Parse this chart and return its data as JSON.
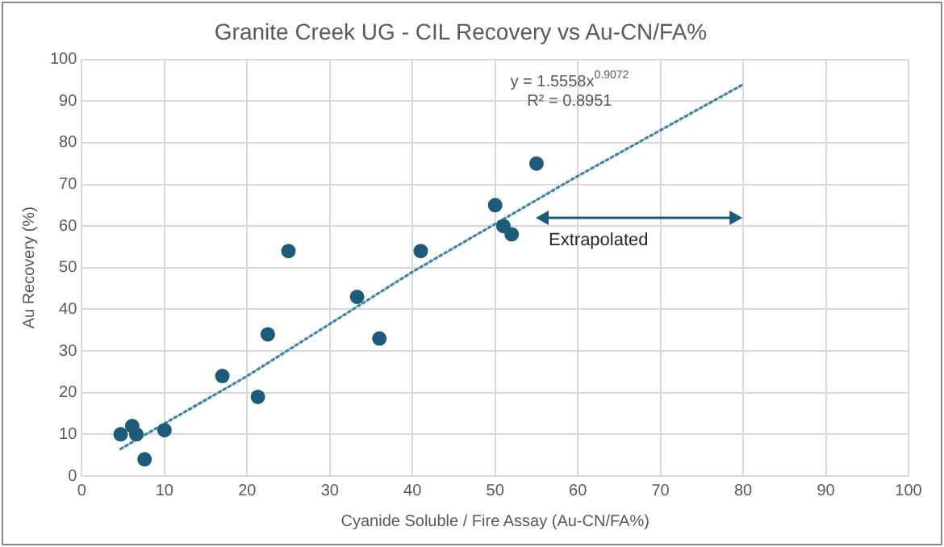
{
  "chart_data": {
    "type": "scatter",
    "title": "Granite Creek UG - CIL Recovery vs Au-CN/FA%",
    "xlabel": "Cyanide Soluble / Fire Assay (Au-CN/FA%)",
    "ylabel": "Au Recovery (%)",
    "series": [
      {
        "color": "#1d5b7a",
        "x": [
          4.7,
          6.1,
          6.6,
          7.6,
          10,
          17,
          21.3,
          22.5,
          25,
          33.3,
          36,
          41,
          50,
          51,
          52,
          55
        ],
        "values": [
          10,
          12,
          10,
          4,
          11,
          24,
          19,
          34,
          54,
          43,
          33,
          54,
          65,
          60,
          58,
          75
        ],
        "marker": "circle"
      },
      {
        "type": "line",
        "color": "#3f86ad",
        "line_style": "dotted",
        "marker": "none",
        "x": [
          4.7,
          20,
          40,
          60,
          80
        ],
        "values": [
          6.5,
          24,
          49,
          72,
          94
        ]
      }
    ],
    "xlim": [
      0,
      100
    ],
    "xticks": [
      0,
      10,
      20,
      30,
      40,
      50,
      60,
      70,
      80,
      90,
      100
    ],
    "ylim": [
      0,
      100
    ],
    "yticks": [
      0,
      10,
      20,
      30,
      40,
      50,
      60,
      70,
      80,
      90,
      100
    ],
    "grid": true,
    "legend": false,
    "annotations": [
      "y = 1.5558x$^{0.9072}$",
      "R² = 0.8951",
      "Extrapolated"
    ]
  }
}
